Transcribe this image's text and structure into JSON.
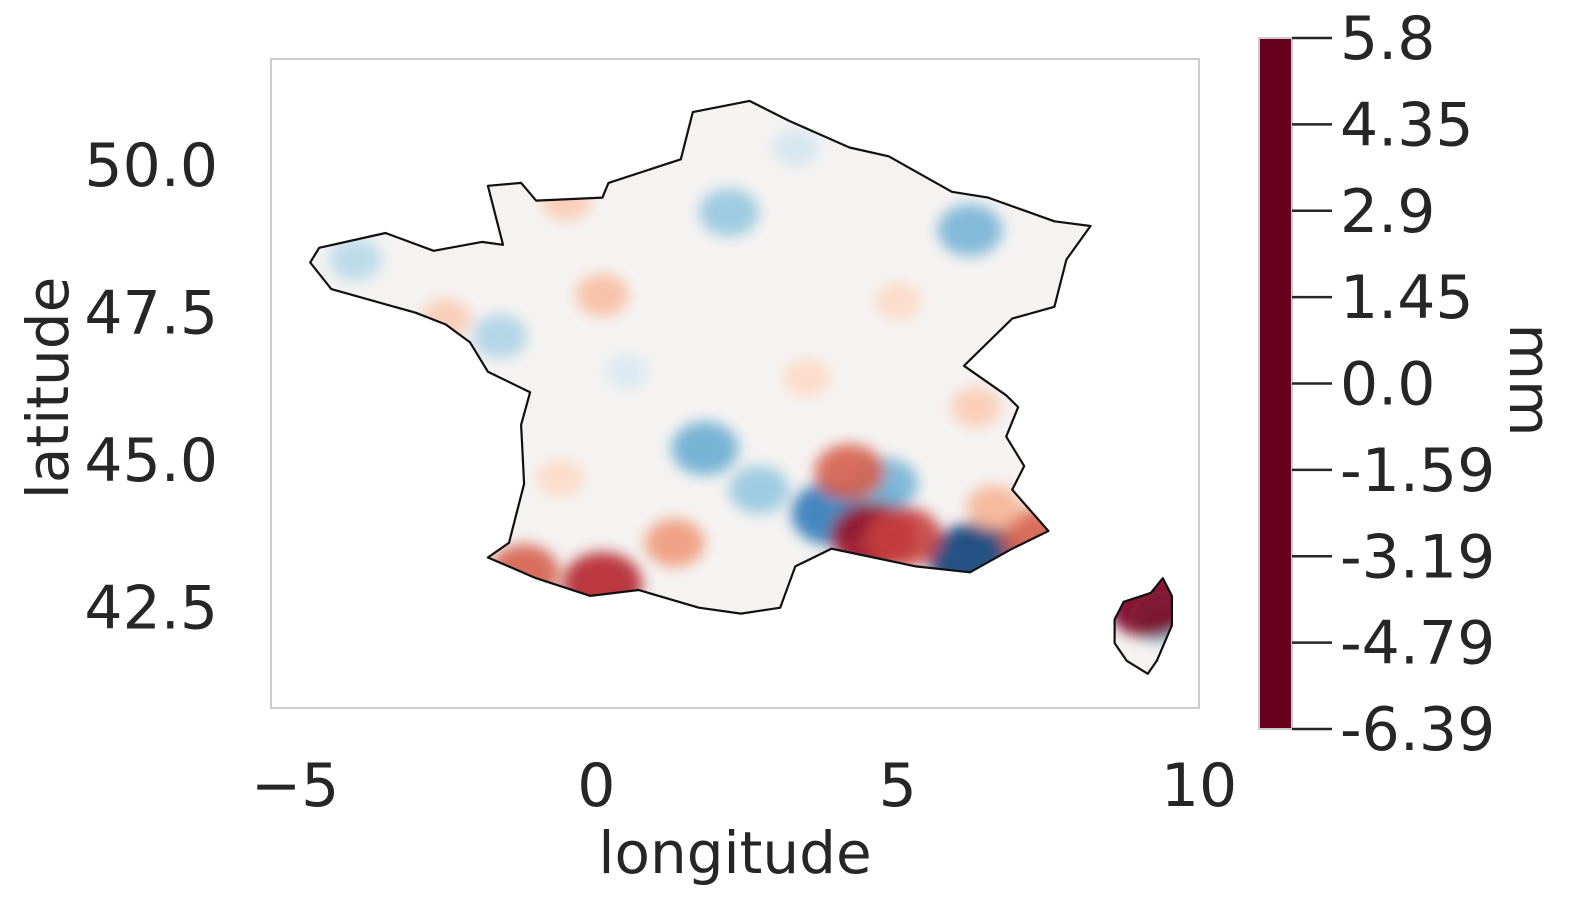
{
  "chart_data": {
    "type": "heatmap",
    "title": "",
    "xlabel": "longitude",
    "ylabel": "latitude",
    "xlim": [
      -5.4,
      10.0
    ],
    "ylim": [
      40.8,
      51.8
    ],
    "grid": false,
    "xticks": [
      -5,
      0,
      5,
      10
    ],
    "xtick_labels": [
      "−5",
      "0",
      "5",
      "10"
    ],
    "yticks": [
      50.0,
      47.5,
      45.0,
      42.5
    ],
    "ytick_labels": [
      "50.0",
      "47.5",
      "45.0",
      "42.5"
    ],
    "colorbar": {
      "label": "mm",
      "colormap": "RdBu_r",
      "vmin": -6.39,
      "vmax": 5.8,
      "ticks": [
        5.8,
        4.35,
        2.9,
        1.45,
        0.0,
        -1.59,
        -3.19,
        -4.79,
        -6.39
      ],
      "tick_labels": [
        "5.8",
        "4.35",
        "2.9",
        "1.45",
        "0.0",
        "-1.59",
        "-3.19",
        "-4.79",
        "-6.39"
      ],
      "colors": [
        "#67001f",
        "#b2182b",
        "#d6604d",
        "#f4a582",
        "#fddbc7",
        "#f7f7f7",
        "#d1e5f0",
        "#92c5de",
        "#4393c3",
        "#2166ac",
        "#053061"
      ]
    },
    "region_outline": "France (mainland and Corsica) coastline and borders",
    "anomaly_patches": [
      {
        "lon": 2.2,
        "lat": 49.2,
        "value": -2.5
      },
      {
        "lon": 6.2,
        "lat": 48.9,
        "value": -3.0
      },
      {
        "lon": -4.0,
        "lat": 48.4,
        "value": -1.8
      },
      {
        "lon": -1.6,
        "lat": 47.1,
        "value": -2.0
      },
      {
        "lon": 1.8,
        "lat": 45.2,
        "value": -3.2
      },
      {
        "lon": 2.7,
        "lat": 44.5,
        "value": -2.5
      },
      {
        "lon": 3.9,
        "lat": 44.1,
        "value": -4.5
      },
      {
        "lon": 4.5,
        "lat": 44.2,
        "value": -4.0
      },
      {
        "lon": 4.8,
        "lat": 44.6,
        "value": -3.0
      },
      {
        "lon": 6.3,
        "lat": 43.3,
        "value": -6.0
      },
      {
        "lon": 4.6,
        "lat": 43.7,
        "value": 5.0
      },
      {
        "lon": 5.1,
        "lat": 43.7,
        "value": 4.0
      },
      {
        "lon": 4.2,
        "lat": 44.8,
        "value": 3.5
      },
      {
        "lon": 7.3,
        "lat": 43.7,
        "value": 3.5
      },
      {
        "lon": 6.6,
        "lat": 44.2,
        "value": 2.0
      },
      {
        "lon": 0.1,
        "lat": 42.9,
        "value": 4.5
      },
      {
        "lon": -1.2,
        "lat": 43.1,
        "value": 3.5
      },
      {
        "lon": 1.3,
        "lat": 43.6,
        "value": 2.5
      },
      {
        "lon": 9.4,
        "lat": 42.3,
        "value": -2.5
      },
      {
        "lon": 9.2,
        "lat": 42.6,
        "value": 5.5
      },
      {
        "lon": -0.5,
        "lat": 49.4,
        "value": 1.5
      },
      {
        "lon": 0.1,
        "lat": 47.8,
        "value": 1.8
      },
      {
        "lon": -2.5,
        "lat": 47.4,
        "value": 1.5
      },
      {
        "lon": 3.5,
        "lat": 46.4,
        "value": 1.2
      },
      {
        "lon": 5.0,
        "lat": 47.7,
        "value": 1.2
      },
      {
        "lon": 3.3,
        "lat": 50.3,
        "value": -1.2
      },
      {
        "lon": 0.5,
        "lat": 46.5,
        "value": -1.0
      },
      {
        "lon": -0.6,
        "lat": 44.7,
        "value": 1.2
      },
      {
        "lon": 6.3,
        "lat": 45.9,
        "value": 1.5
      }
    ]
  }
}
